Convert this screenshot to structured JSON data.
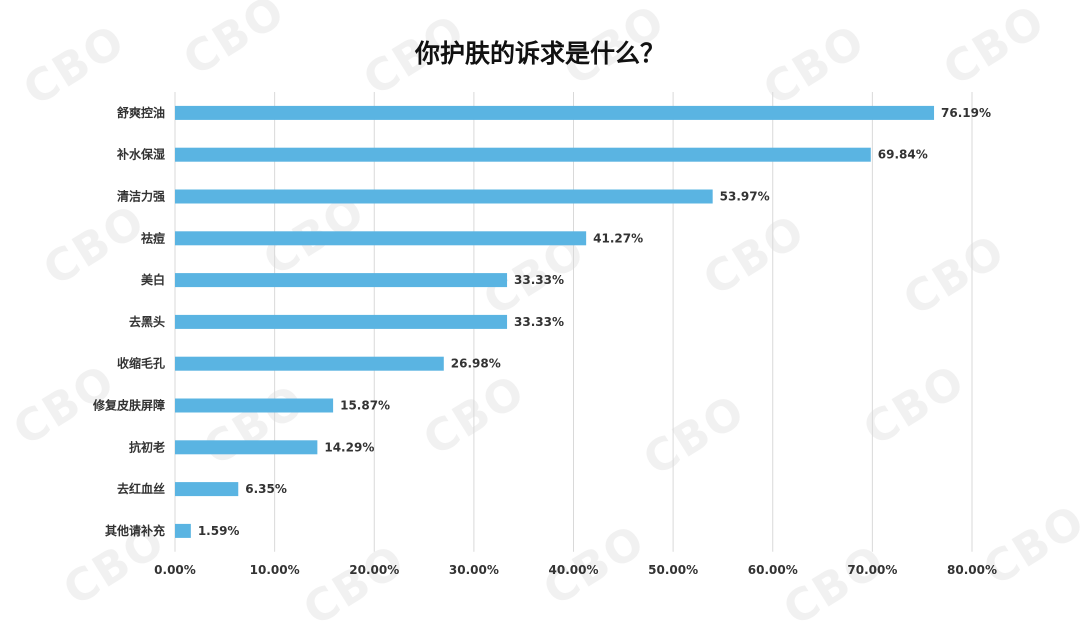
{
  "chart_data": {
    "type": "bar",
    "orientation": "horizontal",
    "title": "你护肤的诉求是什么？",
    "categories": [
      "舒爽控油",
      "补水保湿",
      "清洁力强",
      "祛痘",
      "美白",
      "去黑头",
      "收缩毛孔",
      "修复皮肤屏障",
      "抗初老",
      "去红血丝",
      "其他请补充"
    ],
    "values": [
      76.19,
      69.84,
      53.97,
      41.27,
      33.33,
      33.33,
      26.98,
      15.87,
      14.29,
      6.35,
      1.59
    ],
    "value_labels": [
      "76.19%",
      "69.84%",
      "53.97%",
      "41.27%",
      "33.33%",
      "33.33%",
      "26.98%",
      "15.87%",
      "14.29%",
      "6.35%",
      "1.59%"
    ],
    "xticks": [
      "0.00%",
      "10.00%",
      "20.00%",
      "30.00%",
      "40.00%",
      "50.00%",
      "60.00%",
      "70.00%",
      "80.00%"
    ],
    "xlim": [
      0,
      80
    ],
    "grid": "vertical",
    "legend": "none",
    "bar_color": "#5ab4e2",
    "watermark": "CBO"
  }
}
